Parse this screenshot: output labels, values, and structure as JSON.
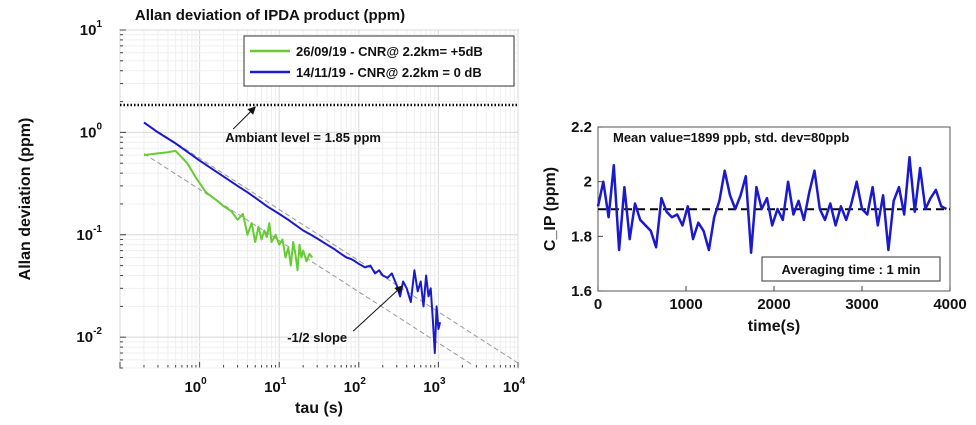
{
  "chart_data": [
    {
      "type": "line",
      "title": "Allan deviation of IPDA product (ppm)",
      "xlabel": "tau (s)",
      "ylabel": "Allan deviation (ppm)",
      "xscale": "log",
      "yscale": "log",
      "xlim": [
        0.1,
        10000
      ],
      "ylim": [
        0.005,
        10
      ],
      "x_ticks": [
        {
          "base": "10",
          "exp": "0",
          "value": 1
        },
        {
          "base": "10",
          "exp": "1",
          "value": 10
        },
        {
          "base": "10",
          "exp": "2",
          "value": 100
        },
        {
          "base": "10",
          "exp": "3",
          "value": 1000
        },
        {
          "base": "10",
          "exp": "4",
          "value": 10000
        }
      ],
      "y_ticks": [
        {
          "base": "10",
          "exp": "1",
          "value": 10
        },
        {
          "base": "10",
          "exp": "0",
          "value": 1
        },
        {
          "base": "10",
          "exp": "-1",
          "value": 0.1
        },
        {
          "base": "10",
          "exp": "-2",
          "value": 0.01
        }
      ],
      "grid": true,
      "legend_position": "top-right",
      "series": [
        {
          "name": "26/09/19 - CNR@ 2.2km= +5dB",
          "color": "#66cc33",
          "x": [
            0.2,
            0.28,
            0.4,
            0.5,
            0.7,
            0.9,
            1.2,
            1.6,
            2.0,
            2.5,
            3.0,
            3.5,
            4.0,
            4.5,
            5.0,
            5.5,
            6.0,
            6.5,
            7.0,
            7.5,
            8.0,
            9.0,
            10.0,
            11.0,
            12.0,
            13.0,
            14.0,
            15.0,
            16.0,
            17.0,
            18.0,
            19.0,
            20.0,
            22.0,
            24.0,
            26.0
          ],
          "y": [
            0.6,
            0.62,
            0.64,
            0.66,
            0.5,
            0.36,
            0.26,
            0.22,
            0.19,
            0.17,
            0.14,
            0.16,
            0.1,
            0.13,
            0.085,
            0.12,
            0.09,
            0.11,
            0.095,
            0.13,
            0.085,
            0.1,
            0.08,
            0.09,
            0.06,
            0.075,
            0.05,
            0.085,
            0.065,
            0.045,
            0.08,
            0.06,
            0.07,
            0.055,
            0.065,
            0.06
          ]
        },
        {
          "name": "14/11/19 - CNR@ 2.2km = 0 dB",
          "color": "#1a1acc",
          "x": [
            0.2,
            0.3,
            0.5,
            0.8,
            1.0,
            1.5,
            2.0,
            3.0,
            4.0,
            5.0,
            7.0,
            10.0,
            13.0,
            16.0,
            20.0,
            25.0,
            30.0,
            40.0,
            50.0,
            60.0,
            70.0,
            80.0,
            90.0,
            100.0,
            120.0,
            140.0,
            160.0,
            180.0,
            200.0,
            230.0,
            260.0,
            300.0,
            330.0,
            360.0,
            400.0,
            450.0,
            500.0,
            550.0,
            600.0,
            650.0,
            700.0,
            750.0,
            800.0,
            850.0,
            900.0,
            950.0,
            1000.0,
            1050.0
          ],
          "y": [
            1.25,
            1.0,
            0.78,
            0.6,
            0.53,
            0.43,
            0.37,
            0.3,
            0.26,
            0.23,
            0.19,
            0.16,
            0.14,
            0.125,
            0.11,
            0.1,
            0.092,
            0.08,
            0.072,
            0.065,
            0.06,
            0.058,
            0.055,
            0.052,
            0.048,
            0.05,
            0.042,
            0.045,
            0.04,
            0.038,
            0.042,
            0.032,
            0.025,
            0.035,
            0.03,
            0.022,
            0.045,
            0.028,
            0.035,
            0.02,
            0.04,
            0.025,
            0.03,
            0.015,
            0.007,
            0.02,
            0.012,
            0.014
          ]
        }
      ],
      "reference_lines": [
        {
          "kind": "slope",
          "slope": -0.5,
          "anchor": [
            0.2,
            1.25
          ],
          "color": "#999999"
        },
        {
          "kind": "slope",
          "slope": -0.5,
          "anchor": [
            0.2,
            0.62
          ],
          "color": "#999999"
        },
        {
          "kind": "horizontal",
          "y": 1.85,
          "color": "#000000",
          "style": "dotted"
        }
      ],
      "annotations": [
        {
          "text": "Ambiant level = 1.85 ppm",
          "arrow_to": [
            5,
            1.85
          ],
          "text_at": [
            20,
            0.9
          ]
        },
        {
          "text": "-1/2 slope",
          "arrow_to": [
            350,
            0.033
          ],
          "text_at": [
            30,
            0.01
          ]
        }
      ]
    },
    {
      "type": "line",
      "title": "",
      "xlabel": "time(s)",
      "ylabel": "C_IP (ppm)",
      "xlim": [
        0,
        4000
      ],
      "ylim": [
        1.6,
        2.2
      ],
      "x_ticks": [
        {
          "label": "0",
          "value": 0
        },
        {
          "label": "1000",
          "value": 1000
        },
        {
          "label": "2000",
          "value": 2000
        },
        {
          "label": "3000",
          "value": 3000
        },
        {
          "label": "4000",
          "value": 4000
        }
      ],
      "y_ticks": [
        {
          "label": "2.2",
          "value": 2.2
        },
        {
          "label": "2",
          "value": 2.0
        },
        {
          "label": "1.8",
          "value": 1.8
        },
        {
          "label": "1.6",
          "value": 1.6
        }
      ],
      "grid": false,
      "series": [
        {
          "name": "",
          "color": "#1a1acc",
          "x": [
            0,
            60,
            120,
            180,
            240,
            300,
            360,
            420,
            480,
            540,
            600,
            660,
            720,
            780,
            840,
            900,
            960,
            1020,
            1080,
            1140,
            1200,
            1260,
            1320,
            1380,
            1440,
            1500,
            1560,
            1620,
            1680,
            1740,
            1800,
            1860,
            1920,
            1980,
            2040,
            2100,
            2160,
            2220,
            2280,
            2340,
            2400,
            2460,
            2520,
            2580,
            2640,
            2700,
            2760,
            2820,
            2880,
            2940,
            3000,
            3060,
            3120,
            3180,
            3240,
            3300,
            3360,
            3420,
            3480,
            3540,
            3600,
            3660,
            3720,
            3780,
            3840,
            3900,
            3960
          ],
          "y": [
            1.91,
            2.0,
            1.87,
            2.06,
            1.75,
            1.98,
            1.79,
            1.92,
            1.86,
            1.84,
            1.82,
            1.76,
            1.94,
            1.89,
            1.87,
            1.88,
            1.84,
            1.91,
            1.79,
            1.85,
            1.82,
            1.75,
            1.87,
            1.93,
            2.04,
            1.95,
            1.9,
            1.95,
            2.02,
            1.74,
            1.98,
            1.9,
            1.94,
            1.84,
            1.9,
            1.86,
            2.0,
            1.88,
            1.93,
            1.86,
            1.96,
            2.04,
            1.9,
            1.86,
            1.92,
            1.84,
            1.91,
            1.86,
            1.92,
            2.0,
            1.9,
            1.88,
            1.98,
            1.84,
            1.95,
            1.75,
            1.93,
            1.98,
            1.88,
            2.09,
            1.89,
            2.05,
            1.9,
            1.94,
            1.97,
            1.91,
            1.9
          ],
          "marker": "none"
        }
      ],
      "reference_lines": [
        {
          "kind": "horizontal",
          "y": 1.899,
          "color": "#000000",
          "style": "dashed"
        }
      ],
      "annotations": [
        {
          "text": "Mean value=1899 ppb, std. dev=80ppb",
          "position": "top"
        },
        {
          "text": "Averaging time : 1 min",
          "position": "bottom-right",
          "boxed": true
        }
      ]
    }
  ]
}
